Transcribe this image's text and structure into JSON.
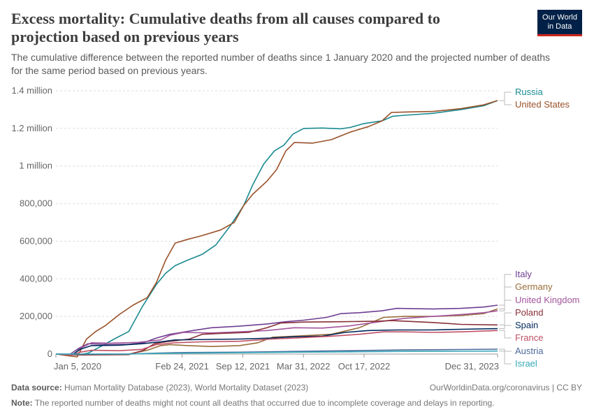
{
  "header": {
    "title": "Excess mortality: Cumulative deaths from all causes compared to projection based on previous years",
    "subtitle": "The cumulative difference between the reported number of deaths since 1 January 2020 and the projected number of deaths for the same period based on previous years.",
    "logo_line1": "Our World",
    "logo_line2": "in Data"
  },
  "footer": {
    "source_label": "Data source:",
    "source_text": "Human Mortality Database (2023), World Mortality Dataset (2023)",
    "note_label": "Note:",
    "note_text": "The reported number of deaths might not count all deaths that occurred due to incomplete coverage and delays in reporting.",
    "license": "OurWorldinData.org/coronavirus | CC BY"
  },
  "chart_data": {
    "type": "line",
    "x_range": [
      "2020-01-05",
      "2023-12-31"
    ],
    "ylim": [
      0,
      1400000
    ],
    "y_ticks": [
      0,
      200000,
      400000,
      600000,
      800000,
      1000000,
      1200000,
      1400000
    ],
    "y_tick_labels": [
      "0",
      "200,000",
      "400,000",
      "600,000",
      "800,000",
      "1 million",
      "1.2 million",
      "1.4 million"
    ],
    "x_ticks": [
      "2020-01-05",
      "2021-02-24",
      "2021-09-12",
      "2022-03-31",
      "2022-10-17",
      "2023-12-31"
    ],
    "x_tick_labels": [
      "Jan 5, 2020",
      "Feb 24, 2021",
      "Sep 12, 2021",
      "Mar 31, 2022",
      "Oct 17, 2022",
      "Dec 31, 2023"
    ],
    "grid": "horizontal dashed",
    "legend": "right-end labels",
    "series": [
      {
        "name": "Russia",
        "color": "#1a8a91",
        "points": [
          [
            "2020-01-05",
            0
          ],
          [
            "2020-03-15",
            -5000
          ],
          [
            "2020-04-20",
            5000
          ],
          [
            "2020-06-01",
            40000
          ],
          [
            "2020-07-15",
            80000
          ],
          [
            "2020-09-01",
            120000
          ],
          [
            "2020-10-15",
            250000
          ],
          [
            "2020-12-01",
            370000
          ],
          [
            "2021-01-01",
            430000
          ],
          [
            "2021-02-01",
            470000
          ],
          [
            "2021-03-15",
            500000
          ],
          [
            "2021-05-01",
            530000
          ],
          [
            "2021-06-15",
            580000
          ],
          [
            "2021-08-01",
            680000
          ],
          [
            "2021-09-15",
            790000
          ],
          [
            "2021-10-15",
            900000
          ],
          [
            "2021-11-20",
            1010000
          ],
          [
            "2021-12-25",
            1080000
          ],
          [
            "2022-01-25",
            1110000
          ],
          [
            "2022-02-25",
            1170000
          ],
          [
            "2022-04-01",
            1200000
          ],
          [
            "2022-06-01",
            1202000
          ],
          [
            "2022-08-01",
            1198000
          ],
          [
            "2022-09-01",
            1205000
          ],
          [
            "2022-10-15",
            1225000
          ],
          [
            "2022-12-15",
            1240000
          ],
          [
            "2023-01-20",
            1265000
          ],
          [
            "2023-03-01",
            1270000
          ],
          [
            "2023-06-01",
            1280000
          ],
          [
            "2023-09-01",
            1300000
          ],
          [
            "2023-11-15",
            1320000
          ],
          [
            "2023-12-31",
            1348000
          ]
        ]
      },
      {
        "name": "United States",
        "color": "#9a5129",
        "points": [
          [
            "2020-01-05",
            0
          ],
          [
            "2020-02-20",
            -10000
          ],
          [
            "2020-03-15",
            -15000
          ],
          [
            "2020-04-15",
            80000
          ],
          [
            "2020-05-15",
            120000
          ],
          [
            "2020-06-15",
            150000
          ],
          [
            "2020-08-01",
            210000
          ],
          [
            "2020-09-15",
            260000
          ],
          [
            "2020-11-01",
            300000
          ],
          [
            "2020-12-01",
            380000
          ],
          [
            "2021-01-01",
            500000
          ],
          [
            "2021-02-01",
            590000
          ],
          [
            "2021-03-15",
            610000
          ],
          [
            "2021-05-01",
            630000
          ],
          [
            "2021-07-01",
            660000
          ],
          [
            "2021-08-15",
            700000
          ],
          [
            "2021-09-15",
            790000
          ],
          [
            "2021-10-15",
            850000
          ],
          [
            "2021-12-01",
            920000
          ],
          [
            "2022-01-01",
            980000
          ],
          [
            "2022-02-01",
            1080000
          ],
          [
            "2022-03-01",
            1125000
          ],
          [
            "2022-05-01",
            1122000
          ],
          [
            "2022-07-01",
            1140000
          ],
          [
            "2022-09-01",
            1180000
          ],
          [
            "2022-11-01",
            1210000
          ],
          [
            "2022-12-15",
            1240000
          ],
          [
            "2023-01-15",
            1285000
          ],
          [
            "2023-03-01",
            1287000
          ],
          [
            "2023-06-01",
            1290000
          ],
          [
            "2023-09-01",
            1305000
          ],
          [
            "2023-11-15",
            1325000
          ],
          [
            "2023-12-31",
            1348000
          ]
        ]
      },
      {
        "name": "Italy",
        "color": "#6d3e91",
        "points": [
          [
            "2020-01-05",
            0
          ],
          [
            "2020-02-20",
            -2000
          ],
          [
            "2020-03-20",
            30000
          ],
          [
            "2020-04-20",
            55000
          ],
          [
            "2020-07-01",
            50000
          ],
          [
            "2020-09-01",
            52000
          ],
          [
            "2020-10-20",
            60000
          ],
          [
            "2020-12-01",
            85000
          ],
          [
            "2021-01-15",
            105000
          ],
          [
            "2021-04-01",
            125000
          ],
          [
            "2021-06-01",
            140000
          ],
          [
            "2021-09-01",
            148000
          ],
          [
            "2021-12-01",
            160000
          ],
          [
            "2022-02-01",
            172000
          ],
          [
            "2022-04-01",
            180000
          ],
          [
            "2022-06-15",
            195000
          ],
          [
            "2022-08-01",
            215000
          ],
          [
            "2022-10-01",
            220000
          ],
          [
            "2022-12-15",
            230000
          ],
          [
            "2023-02-01",
            243000
          ],
          [
            "2023-06-01",
            240000
          ],
          [
            "2023-09-01",
            243000
          ],
          [
            "2023-11-15",
            250000
          ],
          [
            "2023-12-31",
            260000
          ]
        ]
      },
      {
        "name": "Germany",
        "color": "#996d39",
        "points": [
          [
            "2020-01-05",
            0
          ],
          [
            "2020-03-01",
            -3000
          ],
          [
            "2020-06-01",
            -2000
          ],
          [
            "2020-09-01",
            0
          ],
          [
            "2020-11-01",
            20000
          ],
          [
            "2020-12-15",
            45000
          ],
          [
            "2021-01-15",
            50000
          ],
          [
            "2021-03-15",
            45000
          ],
          [
            "2021-06-01",
            40000
          ],
          [
            "2021-09-01",
            45000
          ],
          [
            "2021-11-01",
            60000
          ],
          [
            "2021-12-20",
            90000
          ],
          [
            "2022-03-01",
            95000
          ],
          [
            "2022-07-01",
            105000
          ],
          [
            "2022-10-01",
            140000
          ],
          [
            "2022-12-20",
            195000
          ],
          [
            "2023-03-01",
            200000
          ],
          [
            "2023-06-01",
            200000
          ],
          [
            "2023-09-01",
            205000
          ],
          [
            "2023-11-15",
            215000
          ],
          [
            "2023-12-31",
            240000
          ]
        ]
      },
      {
        "name": "United Kingdom",
        "color": "#a2559c",
        "points": [
          [
            "2020-01-05",
            0
          ],
          [
            "2020-03-01",
            -5000
          ],
          [
            "2020-03-25",
            30000
          ],
          [
            "2020-05-01",
            60000
          ],
          [
            "2020-07-01",
            58000
          ],
          [
            "2020-10-01",
            62000
          ],
          [
            "2020-12-15",
            75000
          ],
          [
            "2021-01-15",
            100000
          ],
          [
            "2021-03-01",
            115000
          ],
          [
            "2021-06-01",
            112000
          ],
          [
            "2021-09-01",
            118000
          ],
          [
            "2021-12-01",
            125000
          ],
          [
            "2022-03-01",
            140000
          ],
          [
            "2022-06-01",
            138000
          ],
          [
            "2022-09-01",
            150000
          ],
          [
            "2022-12-20",
            175000
          ],
          [
            "2023-03-01",
            190000
          ],
          [
            "2023-06-01",
            200000
          ],
          [
            "2023-09-01",
            210000
          ],
          [
            "2023-11-15",
            220000
          ],
          [
            "2023-12-31",
            230000
          ]
        ]
      },
      {
        "name": "Poland",
        "color": "#883039",
        "points": [
          [
            "2020-01-05",
            0
          ],
          [
            "2020-04-01",
            -5000
          ],
          [
            "2020-09-01",
            -3000
          ],
          [
            "2020-10-20",
            20000
          ],
          [
            "2020-11-25",
            55000
          ],
          [
            "2021-01-01",
            65000
          ],
          [
            "2021-03-20",
            80000
          ],
          [
            "2021-05-01",
            105000
          ],
          [
            "2021-07-01",
            110000
          ],
          [
            "2021-10-01",
            115000
          ],
          [
            "2021-12-01",
            140000
          ],
          [
            "2022-01-15",
            165000
          ],
          [
            "2022-04-01",
            170000
          ],
          [
            "2022-08-01",
            172000
          ],
          [
            "2022-12-01",
            175000
          ],
          [
            "2023-01-15",
            178000
          ],
          [
            "2023-06-01",
            168000
          ],
          [
            "2023-09-01",
            158000
          ],
          [
            "2023-12-31",
            155000
          ]
        ]
      },
      {
        "name": "Spain",
        "color": "#00295b",
        "points": [
          [
            "2020-01-05",
            0
          ],
          [
            "2020-03-01",
            -2000
          ],
          [
            "2020-03-25",
            25000
          ],
          [
            "2020-05-01",
            45000
          ],
          [
            "2020-08-01",
            47000
          ],
          [
            "2020-10-15",
            55000
          ],
          [
            "2020-12-15",
            65000
          ],
          [
            "2021-02-01",
            75000
          ],
          [
            "2021-06-01",
            78000
          ],
          [
            "2021-09-01",
            80000
          ],
          [
            "2021-12-15",
            85000
          ],
          [
            "2022-03-01",
            92000
          ],
          [
            "2022-06-01",
            95000
          ],
          [
            "2022-08-15",
            115000
          ],
          [
            "2022-11-01",
            125000
          ],
          [
            "2023-02-01",
            128000
          ],
          [
            "2023-06-01",
            128000
          ],
          [
            "2023-09-01",
            132000
          ],
          [
            "2023-12-31",
            135000
          ]
        ]
      },
      {
        "name": "France",
        "color": "#c15065",
        "points": [
          [
            "2020-01-05",
            0
          ],
          [
            "2020-03-01",
            -5000
          ],
          [
            "2020-03-25",
            10000
          ],
          [
            "2020-05-01",
            20000
          ],
          [
            "2020-08-01",
            18000
          ],
          [
            "2020-10-15",
            25000
          ],
          [
            "2020-12-01",
            50000
          ],
          [
            "2021-02-01",
            60000
          ],
          [
            "2021-05-01",
            65000
          ],
          [
            "2021-09-01",
            68000
          ],
          [
            "2021-12-15",
            80000
          ],
          [
            "2022-03-01",
            85000
          ],
          [
            "2022-07-01",
            95000
          ],
          [
            "2022-10-01",
            105000
          ],
          [
            "2022-12-20",
            118000
          ],
          [
            "2023-03-01",
            118000
          ],
          [
            "2023-06-01",
            115000
          ],
          [
            "2023-09-01",
            118000
          ],
          [
            "2023-12-31",
            125000
          ]
        ]
      },
      {
        "name": "Austria",
        "color": "#4c6a9c",
        "points": [
          [
            "2020-01-05",
            0
          ],
          [
            "2020-09-01",
            0
          ],
          [
            "2020-12-01",
            5000
          ],
          [
            "2021-03-01",
            8000
          ],
          [
            "2021-09-01",
            10000
          ],
          [
            "2022-03-01",
            14000
          ],
          [
            "2022-09-01",
            18000
          ],
          [
            "2023-03-01",
            22000
          ],
          [
            "2023-09-01",
            24000
          ],
          [
            "2023-12-31",
            26000
          ]
        ]
      },
      {
        "name": "Israel",
        "color": "#38aaba",
        "points": [
          [
            "2020-01-05",
            0
          ],
          [
            "2020-09-01",
            0
          ],
          [
            "2020-12-01",
            3000
          ],
          [
            "2021-03-01",
            5000
          ],
          [
            "2021-09-01",
            7000
          ],
          [
            "2022-03-01",
            10000
          ],
          [
            "2022-09-01",
            12000
          ],
          [
            "2023-03-01",
            14000
          ],
          [
            "2023-09-01",
            15000
          ],
          [
            "2023-12-31",
            16000
          ]
        ]
      }
    ]
  }
}
